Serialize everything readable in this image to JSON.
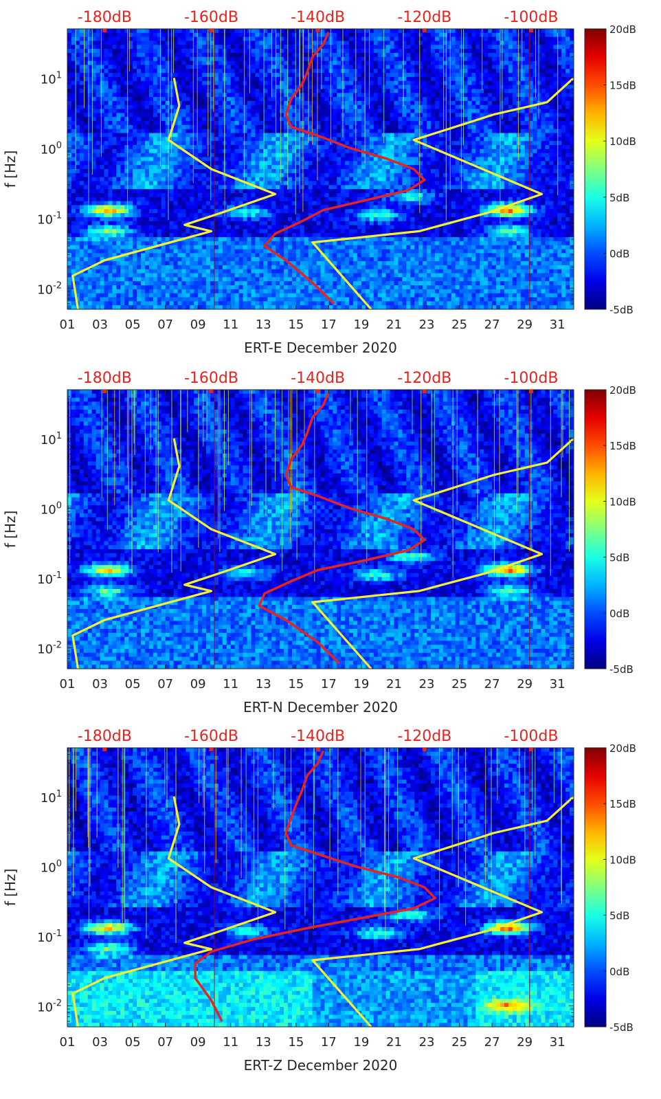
{
  "figure": {
    "colormap": "jet",
    "colorbar_ticks": [
      "20dB",
      "15dB",
      "10dB",
      "5dB",
      "0dB",
      "-5dB"
    ],
    "colorbar_values": [
      20,
      15,
      10,
      5,
      0,
      -5
    ],
    "top_axis_ticks": [
      "-180dB",
      "-160dB",
      "-140dB",
      "-120dB",
      "-100dB"
    ],
    "top_axis_values": [
      -180,
      -160,
      -140,
      -120,
      -100
    ],
    "x_tick_labels": [
      "01",
      "03",
      "05",
      "07",
      "09",
      "11",
      "13",
      "15",
      "17",
      "19",
      "21",
      "23",
      "25",
      "27",
      "29",
      "31"
    ],
    "y_tick_labels": [
      "10^1",
      "10^0",
      "10^-1",
      "10^-2"
    ],
    "y_tick_values": [
      10,
      1,
      0.1,
      0.01
    ],
    "ylabel": "f [Hz]",
    "curve_colors": {
      "median_psd": "#e52420",
      "noise_models": "#f5f032"
    }
  },
  "chart_data": [
    {
      "type": "heatmap",
      "xlabel": "ERT-E December 2020",
      "ylabel": "f [Hz]",
      "xlim": [
        1,
        32
      ],
      "ylim": [
        0.005,
        50
      ],
      "y_scale": "log",
      "color_range_dB": [
        -5,
        20
      ],
      "top_axis_range_dB": [
        -187,
        -92
      ],
      "hotspots": [
        {
          "day": 3.5,
          "f": 0.13,
          "dB": 15
        },
        {
          "day": 3.5,
          "f": 0.065,
          "dB": 10
        },
        {
          "day": 22,
          "f": 0.2,
          "dB": 8
        },
        {
          "day": 28,
          "f": 0.13,
          "dB": 17
        },
        {
          "day": 28,
          "f": 0.065,
          "dB": 9
        },
        {
          "day": 12,
          "f": 0.12,
          "dB": 7
        },
        {
          "day": 20,
          "f": 0.11,
          "dB": 8
        }
      ],
      "series": [
        {
          "kind": "median_psd",
          "x_dB": [
            -138,
            -139,
            -141,
            -142,
            -143,
            -145,
            -146,
            -145,
            -140,
            -134,
            -127,
            -122,
            -120,
            -123,
            -131,
            -139,
            -143,
            -148,
            -150,
            -146,
            -141,
            -137
          ],
          "f": [
            45,
            30,
            20,
            12,
            8,
            5,
            3,
            2,
            1.5,
            1,
            0.7,
            0.5,
            0.35,
            0.25,
            0.18,
            0.13,
            0.09,
            0.06,
            0.04,
            0.025,
            0.012,
            0.006
          ]
        },
        {
          "kind": "noise_model_low",
          "x_dB": [
            -167,
            -166,
            -168,
            -160,
            -148,
            -158,
            -165,
            -160,
            -180,
            -186,
            -185
          ],
          "f": [
            10,
            4,
            1.3,
            0.5,
            0.22,
            0.12,
            0.08,
            0.065,
            0.025,
            0.015,
            0.005
          ]
        },
        {
          "kind": "noise_model_high",
          "x_dB": [
            -92,
            -97,
            -107,
            -122,
            -98,
            -108,
            -121,
            -141,
            -130
          ],
          "f": [
            10,
            4.5,
            3,
            1.3,
            0.22,
            0.12,
            0.065,
            0.045,
            0.005
          ]
        }
      ]
    },
    {
      "type": "heatmap",
      "xlabel": "ERT-N December 2020",
      "ylabel": "f [Hz]",
      "xlim": [
        1,
        32
      ],
      "ylim": [
        0.005,
        50
      ],
      "y_scale": "log",
      "color_range_dB": [
        -5,
        20
      ],
      "top_axis_range_dB": [
        -187,
        -92
      ],
      "hotspots": [
        {
          "day": 3.5,
          "f": 0.13,
          "dB": 14
        },
        {
          "day": 3.5,
          "f": 0.065,
          "dB": 9
        },
        {
          "day": 22,
          "f": 0.2,
          "dB": 9
        },
        {
          "day": 28,
          "f": 0.13,
          "dB": 17
        },
        {
          "day": 28,
          "f": 0.065,
          "dB": 9
        },
        {
          "day": 12,
          "f": 0.12,
          "dB": 7
        },
        {
          "day": 20,
          "f": 0.11,
          "dB": 8
        }
      ],
      "series": [
        {
          "kind": "median_psd",
          "x_dB": [
            -138,
            -139,
            -141,
            -142,
            -143,
            -145,
            -146,
            -145,
            -140,
            -134,
            -127,
            -122,
            -120,
            -123,
            -131,
            -140,
            -145,
            -150,
            -151,
            -146,
            -140,
            -136
          ],
          "f": [
            45,
            30,
            20,
            12,
            8,
            5,
            3,
            2,
            1.5,
            1,
            0.7,
            0.5,
            0.35,
            0.25,
            0.18,
            0.13,
            0.09,
            0.06,
            0.04,
            0.025,
            0.012,
            0.006
          ]
        },
        {
          "kind": "noise_model_low",
          "x_dB": [
            -167,
            -166,
            -168,
            -160,
            -148,
            -158,
            -165,
            -160,
            -180,
            -186,
            -185
          ],
          "f": [
            10,
            4,
            1.3,
            0.5,
            0.22,
            0.12,
            0.08,
            0.065,
            0.025,
            0.015,
            0.005
          ]
        },
        {
          "kind": "noise_model_high",
          "x_dB": [
            -92,
            -97,
            -107,
            -122,
            -98,
            -108,
            -121,
            -141,
            -130
          ],
          "f": [
            10,
            4.5,
            3,
            1.3,
            0.22,
            0.12,
            0.065,
            0.045,
            0.005
          ]
        }
      ]
    },
    {
      "type": "heatmap",
      "xlabel": "ERT-Z December 2020",
      "ylabel": "f [Hz]",
      "xlim": [
        1,
        32
      ],
      "ylim": [
        0.005,
        50
      ],
      "y_scale": "log",
      "color_range_dB": [
        -5,
        20
      ],
      "top_axis_range_dB": [
        -187,
        -92
      ],
      "hotspots": [
        {
          "day": 3.5,
          "f": 0.13,
          "dB": 15
        },
        {
          "day": 3.5,
          "f": 0.065,
          "dB": 10
        },
        {
          "day": 22,
          "f": 0.2,
          "dB": 9
        },
        {
          "day": 28,
          "f": 0.13,
          "dB": 17
        },
        {
          "day": 28,
          "f": 0.01,
          "dB": 10
        },
        {
          "day": 12,
          "f": 0.12,
          "dB": 7
        },
        {
          "day": 20,
          "f": 0.11,
          "dB": 8
        }
      ],
      "series": [
        {
          "kind": "median_psd",
          "x_dB": [
            -139,
            -140,
            -142,
            -143,
            -144,
            -145,
            -146,
            -145,
            -140,
            -133,
            -125,
            -120,
            -118,
            -122,
            -132,
            -142,
            -152,
            -160,
            -163,
            -163,
            -160,
            -158
          ],
          "f": [
            45,
            30,
            20,
            12,
            8,
            5,
            3,
            2,
            1.5,
            1,
            0.7,
            0.5,
            0.35,
            0.25,
            0.18,
            0.13,
            0.09,
            0.06,
            0.04,
            0.025,
            0.012,
            0.006
          ]
        },
        {
          "kind": "noise_model_low",
          "x_dB": [
            -167,
            -166,
            -168,
            -160,
            -148,
            -158,
            -165,
            -160,
            -180,
            -186,
            -185
          ],
          "f": [
            10,
            4,
            1.3,
            0.5,
            0.22,
            0.12,
            0.08,
            0.065,
            0.025,
            0.015,
            0.005
          ]
        },
        {
          "kind": "noise_model_high",
          "x_dB": [
            -92,
            -97,
            -107,
            -122,
            -98,
            -108,
            -121,
            -141,
            -130
          ],
          "f": [
            10,
            4.5,
            3,
            1.3,
            0.22,
            0.12,
            0.065,
            0.045,
            0.005
          ]
        }
      ]
    }
  ]
}
